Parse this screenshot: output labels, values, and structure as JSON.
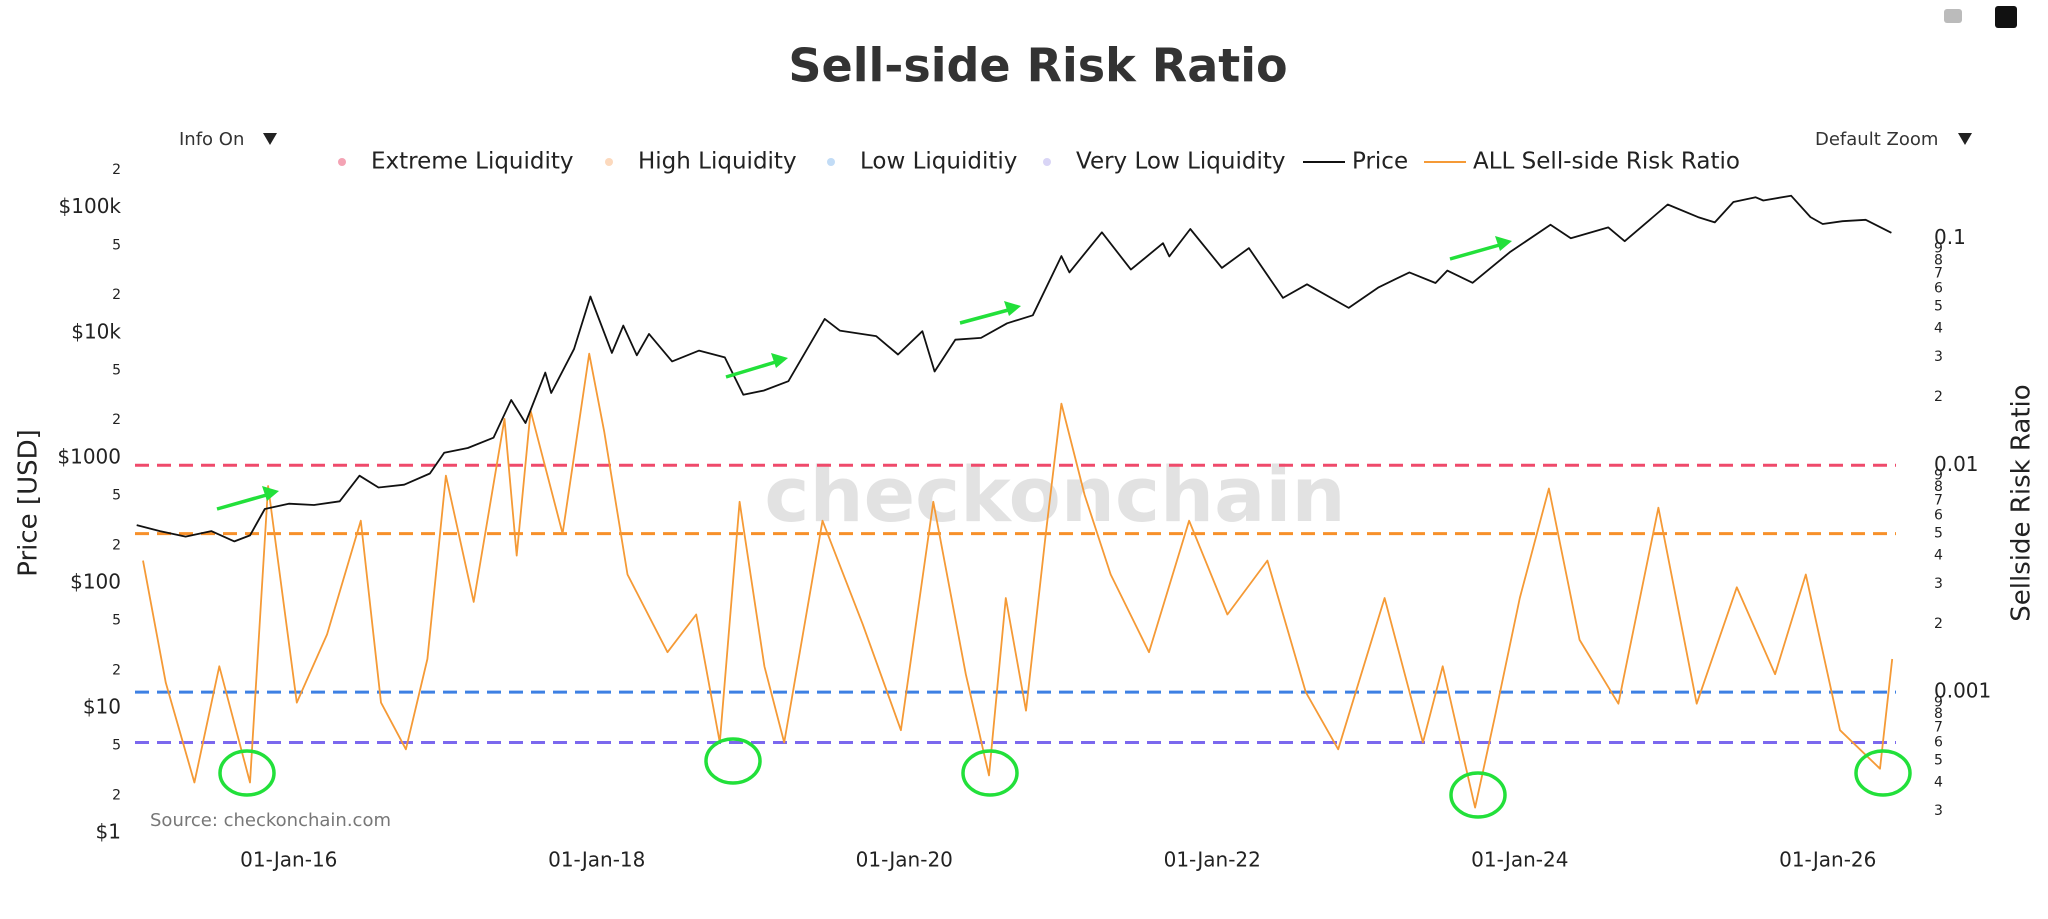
{
  "chart_data": {
    "type": "line",
    "title": "Sell-side Risk Ratio",
    "controls": {
      "info": "Info On",
      "zoom": "Default Zoom"
    },
    "watermark": "checkonchain",
    "source": "Source: checkonchain.com",
    "ylabel": "Price [USD]",
    "y2label": "Sellside Risk Ratio",
    "log_y": true,
    "log_y2": true,
    "grid": false,
    "xlim": [
      "2015-01-01",
      "2026-06-12"
    ],
    "xticks": [
      {
        "value": "2016-01-01",
        "label": "01-Jan-16"
      },
      {
        "value": "2018-01-01",
        "label": "01-Jan-18"
      },
      {
        "value": "2020-01-01",
        "label": "01-Jan-20"
      },
      {
        "value": "2022-01-01",
        "label": "01-Jan-22"
      },
      {
        "value": "2024-01-01",
        "label": "01-Jan-24"
      },
      {
        "value": "2026-01-01",
        "label": "01-Jan-26"
      }
    ],
    "ylim": [
      0.79,
      200000
    ],
    "yticks": [
      {
        "value": 1,
        "label": "$1"
      },
      2,
      5,
      {
        "value": 10,
        "label": "$10"
      },
      {
        "value": 20,
        "label": "2"
      },
      {
        "value": 50,
        "label": "5"
      },
      {
        "value": 100,
        "label": "$100"
      },
      {
        "value": 200,
        "label": "2"
      },
      {
        "value": 500,
        "label": "5"
      },
      {
        "value": 1000,
        "label": "$1000"
      },
      {
        "value": 2000,
        "label": "2"
      },
      {
        "value": 5000,
        "label": "5"
      },
      {
        "value": 10000,
        "label": "$10k"
      },
      {
        "value": 20000,
        "label": "2"
      },
      {
        "value": 50000,
        "label": "5"
      },
      {
        "value": 100000,
        "label": "$100k"
      },
      {
        "value": 200000,
        "label": "2"
      }
    ],
    "y2lim": [
      0.00021,
      0.2
    ],
    "y2ticks": [
      {
        "value": 0.0003,
        "label": "3"
      },
      {
        "value": 0.0004,
        "label": "4"
      },
      {
        "value": 0.0005,
        "label": "5"
      },
      {
        "value": 0.0006,
        "label": "6"
      },
      {
        "value": 0.0007,
        "label": "7"
      },
      {
        "value": 0.0008,
        "label": "8"
      },
      {
        "value": 0.0009,
        "label": "9"
      },
      0.001,
      {
        "value": 0.002,
        "label": "2"
      },
      {
        "value": 0.003,
        "label": "3"
      },
      {
        "value": 0.004,
        "label": "4"
      },
      {
        "value": 0.005,
        "label": "5"
      },
      {
        "value": 0.006,
        "label": "6"
      },
      {
        "value": 0.007,
        "label": "7"
      },
      {
        "value": 0.008,
        "label": "8"
      },
      {
        "value": 0.009,
        "label": "9"
      },
      0.01,
      {
        "value": 0.02,
        "label": "2"
      },
      {
        "value": 0.03,
        "label": "3"
      },
      {
        "value": 0.04,
        "label": "4"
      },
      {
        "value": 0.05,
        "label": "5"
      },
      {
        "value": 0.06,
        "label": "6"
      },
      {
        "value": 0.07,
        "label": "7"
      },
      {
        "value": 0.08,
        "label": "8"
      },
      {
        "value": 0.09,
        "label": "9"
      },
      0.1
    ],
    "reference_lines": [
      {
        "value": 0.01,
        "color": "#ef4a6b",
        "axis": "y2"
      },
      {
        "value": 0.005,
        "color": "#f7902a",
        "axis": "y2"
      },
      {
        "value": 0.001,
        "color": "#3d80e3",
        "axis": "y2"
      },
      {
        "value": 0.0006,
        "color": "#7b68ee",
        "axis": "y2"
      }
    ],
    "series": [
      {
        "name": "Extreme Liquidity",
        "color": "#f4a3b4",
        "visible": false
      },
      {
        "name": "High Liquidity",
        "color": "#fcd9bd",
        "visible": false
      },
      {
        "name": "Low Liquiditiy",
        "color": "#c2dcf6",
        "visible": false
      },
      {
        "name": "Very Low Liquidity",
        "color": "#d9d5f6",
        "visible": false
      },
      {
        "name": "Price",
        "color": "#111111",
        "axis": "y",
        "x": [
          "2015-01-05",
          "2015-03-01",
          "2015-05-01",
          "2015-07-01",
          "2015-08-25",
          "2015-10-01",
          "2015-11-05",
          "2016-01-01",
          "2016-03-01",
          "2016-05-01",
          "2016-06-17",
          "2016-08-01",
          "2016-10-01",
          "2016-12-01",
          "2017-01-04",
          "2017-03-01",
          "2017-05-01",
          "2017-06-12",
          "2017-07-16",
          "2017-09-01",
          "2017-09-15",
          "2017-11-08",
          "2017-12-17",
          "2018-02-06",
          "2018-03-05",
          "2018-04-06",
          "2018-05-05",
          "2018-06-29",
          "2018-09-01",
          "2018-11-01",
          "2018-12-15",
          "2019-02-01",
          "2019-04-01",
          "2019-06-26",
          "2019-08-01",
          "2019-10-26",
          "2019-12-17",
          "2020-02-13",
          "2020-03-13",
          "2020-05-01",
          "2020-07-01",
          "2020-09-01",
          "2020-11-01",
          "2021-01-08",
          "2021-01-27",
          "2021-04-14",
          "2021-06-22",
          "2021-09-06",
          "2021-09-21",
          "2021-11-10",
          "2022-01-24",
          "2022-03-29",
          "2022-06-18",
          "2022-08-14",
          "2022-11-21",
          "2023-01-31",
          "2023-04-14",
          "2023-06-15",
          "2023-07-13",
          "2023-09-11",
          "2023-12-08",
          "2024-03-14",
          "2024-05-01",
          "2024-07-29",
          "2024-09-06",
          "2024-12-17",
          "2025-02-27",
          "2025-04-08",
          "2025-05-22",
          "2025-07-14",
          "2025-08-01",
          "2025-10-06",
          "2025-11-21",
          "2025-12-20",
          "2026-02-05",
          "2026-04-01",
          "2026-06-01"
        ],
        "values": [
          290,
          260,
          235,
          260,
          215,
          240,
          390,
          430,
          420,
          450,
          720,
          580,
          610,
          750,
          1100,
          1200,
          1450,
          2900,
          1900,
          4800,
          3300,
          7400,
          19500,
          6900,
          11400,
          6600,
          9800,
          5900,
          7200,
          6350,
          3200,
          3450,
          4100,
          12900,
          10400,
          9400,
          6700,
          10300,
          4900,
          8800,
          9100,
          11900,
          13800,
          41000,
          30400,
          63500,
          32000,
          52000,
          40800,
          67500,
          33000,
          47500,
          19000,
          24400,
          15800,
          23100,
          30400,
          25000,
          31400,
          25100,
          44000,
          73100,
          57000,
          69500,
          53900,
          106000,
          84000,
          76300,
          111000,
          121000,
          114000,
          124700,
          84000,
          74000,
          78000,
          80000,
          63000
        ]
      },
      {
        "name": "ALL Sell-side Risk Ratio",
        "color": "#f59a36",
        "axis": "y2",
        "x": [
          "2015-01-20",
          "2015-03-15",
          "2015-05-22",
          "2015-07-20",
          "2015-10-01",
          "2015-11-13",
          "2016-01-20",
          "2016-04-01",
          "2016-06-20",
          "2016-08-07",
          "2016-10-05",
          "2016-11-25",
          "2017-01-08",
          "2017-03-15",
          "2017-05-27",
          "2017-06-25",
          "2017-07-28",
          "2017-10-12",
          "2017-12-14",
          "2018-01-19",
          "2018-03-15",
          "2018-06-18",
          "2018-08-25",
          "2018-10-20",
          "2018-12-06",
          "2019-02-03",
          "2019-03-22",
          "2019-06-21",
          "2019-09-24",
          "2019-12-24",
          "2020-03-10",
          "2020-05-26",
          "2020-07-20",
          "2020-08-29",
          "2020-10-16",
          "2020-12-02",
          "2021-01-08",
          "2021-03-04",
          "2021-05-05",
          "2021-08-04",
          "2021-11-07",
          "2022-02-06",
          "2022-05-12",
          "2022-08-11",
          "2022-10-27",
          "2023-02-14",
          "2023-05-16",
          "2023-07-02",
          "2023-09-17",
          "2023-11-03",
          "2024-01-01",
          "2024-03-10",
          "2024-05-22",
          "2024-08-22",
          "2024-11-25",
          "2025-02-24",
          "2025-05-30",
          "2025-08-29",
          "2025-11-10",
          "2026-01-30",
          "2026-05-05",
          "2026-06-03"
        ],
        "values": [
          0.0038,
          0.0011,
          0.0004,
          0.0013,
          0.0004,
          0.0081,
          0.0009,
          0.0018,
          0.0057,
          0.0009,
          0.00056,
          0.0014,
          0.009,
          0.0025,
          0.016,
          0.004,
          0.0174,
          0.005,
          0.031,
          0.014,
          0.0033,
          0.0015,
          0.0022,
          0.0006,
          0.0069,
          0.0013,
          0.0006,
          0.0057,
          0.002,
          0.00068,
          0.0069,
          0.0012,
          0.00043,
          0.0026,
          0.00083,
          0.005,
          0.0187,
          0.0074,
          0.0033,
          0.0015,
          0.0057,
          0.0022,
          0.0038,
          0.001,
          0.00056,
          0.0026,
          0.0006,
          0.0013,
          0.00031,
          0.00078,
          0.0026,
          0.0079,
          0.0017,
          0.00089,
          0.0065,
          0.00089,
          0.0029,
          0.0012,
          0.0033,
          0.00068,
          0.00046,
          0.0014
        ]
      }
    ]
  }
}
